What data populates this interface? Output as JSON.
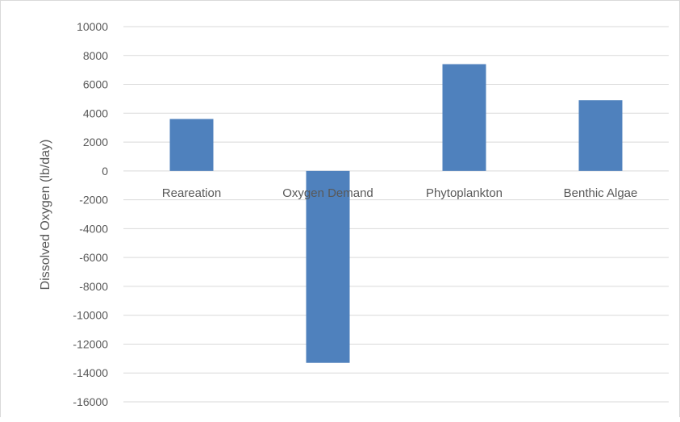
{
  "chart_data": {
    "type": "bar",
    "categories": [
      "Reareation",
      "Oxygen Demand",
      "Phytoplankton",
      "Benthic Algae"
    ],
    "series": [
      {
        "values": [
          3600,
          -13300,
          7400,
          4900
        ]
      }
    ],
    "title": "",
    "xlabel": "",
    "ylabel": "Dissolved Oxygen (lb/day)",
    "ylim": [
      -16000,
      10000
    ],
    "yticks": [
      10000,
      8000,
      6000,
      4000,
      2000,
      0,
      -2000,
      -4000,
      -6000,
      -8000,
      -10000,
      -12000,
      -14000,
      -16000
    ],
    "grid": true,
    "legend": "none",
    "colors": {
      "bar": "#4f81bd",
      "grid": "#d9d9d9",
      "text": "#595959"
    }
  }
}
